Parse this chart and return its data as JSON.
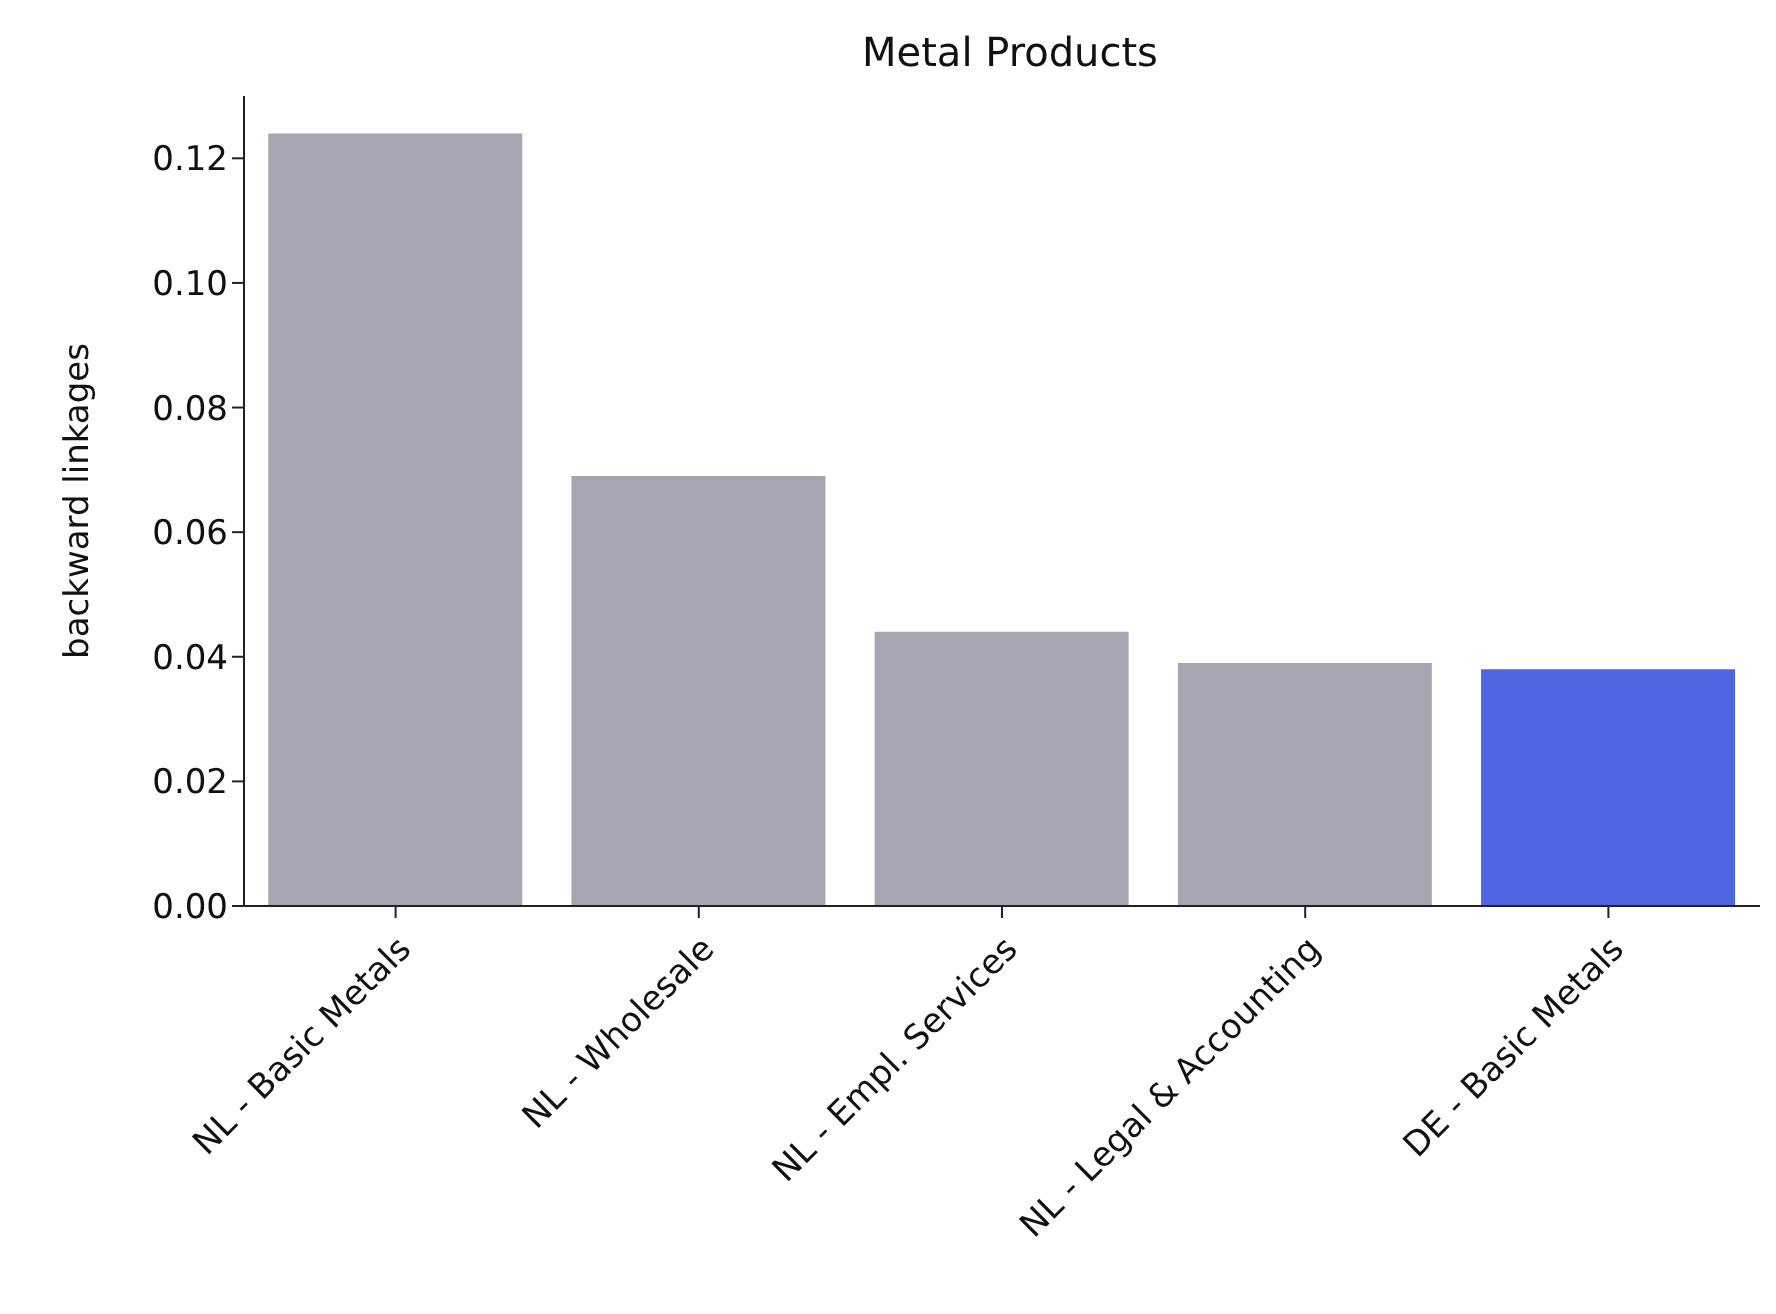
{
  "chart_data": {
    "type": "bar",
    "title": "Metal Products",
    "ylabel": "backward linkages",
    "categories": [
      "NL - Basic Metals",
      "NL - Wholesale",
      "NL - Empl. Services",
      "NL - Legal & Accounting",
      "DE - Basic Metals"
    ],
    "values": [
      0.124,
      0.069,
      0.044,
      0.039,
      0.038
    ],
    "colors": [
      "#a6a6b2",
      "#a6a6b2",
      "#a6a6b2",
      "#a6a6b2",
      "#5065e0"
    ],
    "ylim": [
      0,
      0.13
    ],
    "yticks": [
      {
        "value": 0,
        "label": "0.00"
      },
      {
        "value": 0.02,
        "label": "0.02"
      },
      {
        "value": 0.04,
        "label": "0.04"
      },
      {
        "value": 0.06,
        "label": "0.06"
      },
      {
        "value": 0.08,
        "label": "0.08"
      },
      {
        "value": 0.1,
        "label": "0.10"
      },
      {
        "value": 0.12,
        "label": "0.12"
      }
    ],
    "grid": false,
    "legend": false
  }
}
